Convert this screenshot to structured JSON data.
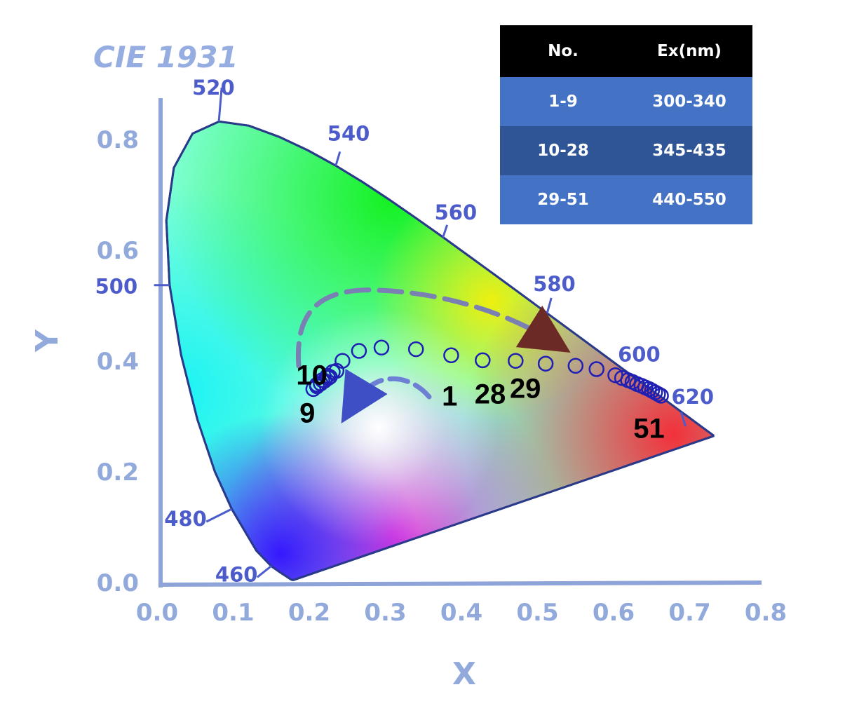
{
  "chart_data": {
    "type": "scatter",
    "title": "CIE 1931",
    "xlabel": "X",
    "ylabel": "Y",
    "xlim": [
      0,
      0.8
    ],
    "ylim": [
      0,
      0.85
    ],
    "x_ticks": [
      "0.0",
      "0.1",
      "0.2",
      "0.3",
      "0.4",
      "0.5",
      "0.6",
      "0.7",
      "0.8"
    ],
    "y_ticks": [
      "0.0",
      "0.2",
      "0.4",
      "0.6",
      "0.8"
    ],
    "grid": false,
    "wavelength_labels": [
      {
        "text": "460",
        "x": 0.144,
        "y": 0.03
      },
      {
        "text": "480",
        "x": 0.091,
        "y": 0.133
      },
      {
        "text": "500",
        "x": 0.008,
        "y": 0.538
      },
      {
        "text": "520",
        "x": 0.074,
        "y": 0.834
      },
      {
        "text": "540",
        "x": 0.23,
        "y": 0.754
      },
      {
        "text": "560",
        "x": 0.373,
        "y": 0.624
      },
      {
        "text": "580",
        "x": 0.512,
        "y": 0.487
      },
      {
        "text": "600",
        "x": 0.627,
        "y": 0.372
      },
      {
        "text": "620",
        "x": 0.691,
        "y": 0.308
      }
    ],
    "point_labels": [
      {
        "text": "10",
        "x": 0.198,
        "y": 0.358
      },
      {
        "text": "9",
        "x": 0.192,
        "y": 0.29
      },
      {
        "text": "1",
        "x": 0.382,
        "y": 0.32
      },
      {
        "text": "28",
        "x": 0.436,
        "y": 0.324
      },
      {
        "text": "29",
        "x": 0.483,
        "y": 0.334
      },
      {
        "text": "51",
        "x": 0.648,
        "y": 0.262
      }
    ],
    "series": [
      {
        "points": [
          [
            0.2,
            0.35
          ],
          [
            0.205,
            0.355
          ],
          [
            0.21,
            0.36
          ],
          [
            0.215,
            0.365
          ],
          [
            0.22,
            0.37
          ],
          [
            0.205,
            0.358
          ],
          [
            0.212,
            0.366
          ],
          [
            0.219,
            0.374
          ],
          [
            0.226,
            0.381
          ],
          [
            0.222,
            0.372
          ],
          [
            0.231,
            0.383
          ],
          [
            0.239,
            0.401
          ],
          [
            0.261,
            0.419
          ],
          [
            0.291,
            0.425
          ],
          [
            0.337,
            0.422
          ],
          [
            0.384,
            0.411
          ],
          [
            0.426,
            0.402
          ],
          [
            0.47,
            0.401
          ],
          [
            0.51,
            0.396
          ],
          [
            0.55,
            0.392
          ],
          [
            0.578,
            0.386
          ],
          [
            0.603,
            0.375
          ],
          [
            0.612,
            0.37
          ],
          [
            0.62,
            0.366
          ],
          [
            0.626,
            0.363
          ],
          [
            0.632,
            0.359
          ],
          [
            0.638,
            0.356
          ],
          [
            0.643,
            0.353
          ],
          [
            0.648,
            0.35
          ],
          [
            0.652,
            0.347
          ],
          [
            0.656,
            0.344
          ],
          [
            0.66,
            0.341
          ],
          [
            0.664,
            0.338
          ]
        ]
      }
    ]
  },
  "table": {
    "headers": [
      "No.",
      "Ex(nm)"
    ],
    "rows": [
      {
        "no": "1-9",
        "ex": "300-340"
      },
      {
        "no": "10-28",
        "ex": "345-435"
      },
      {
        "no": "29-51",
        "ex": "440-550"
      }
    ]
  },
  "colors": {
    "axis": "#8ea4d8",
    "wavelength_label": "#4d5ccb",
    "point_marker": "#1f1fb4",
    "table_header": "#000000",
    "table_row_light": "#4472c4",
    "table_row_dark": "#2f5597"
  }
}
